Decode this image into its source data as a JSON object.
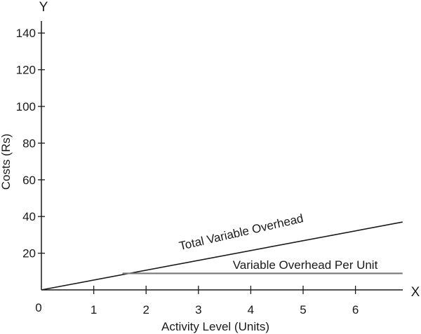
{
  "chart_data": {
    "type": "line",
    "title": "",
    "xlabel": "Activity Level (Units)",
    "ylabel": "Costs (Rs)",
    "x_axis_letter": "X",
    "y_axis_letter": "Y",
    "origin_label": "0",
    "xlim": [
      0,
      6.9
    ],
    "ylim": [
      0,
      145
    ],
    "x_ticks": [
      1,
      2,
      3,
      4,
      5,
      6
    ],
    "y_ticks": [
      20,
      40,
      60,
      80,
      100,
      120,
      140
    ],
    "grid": false,
    "series": [
      {
        "name": "Total Variable Overhead",
        "x": [
          0,
          6.9
        ],
        "y": [
          0,
          37
        ],
        "color": "#1a1a1a"
      },
      {
        "name": "Variable Overhead Per Unit",
        "x": [
          1.55,
          6.9
        ],
        "y": [
          9,
          9
        ],
        "color": "#777777"
      }
    ]
  }
}
